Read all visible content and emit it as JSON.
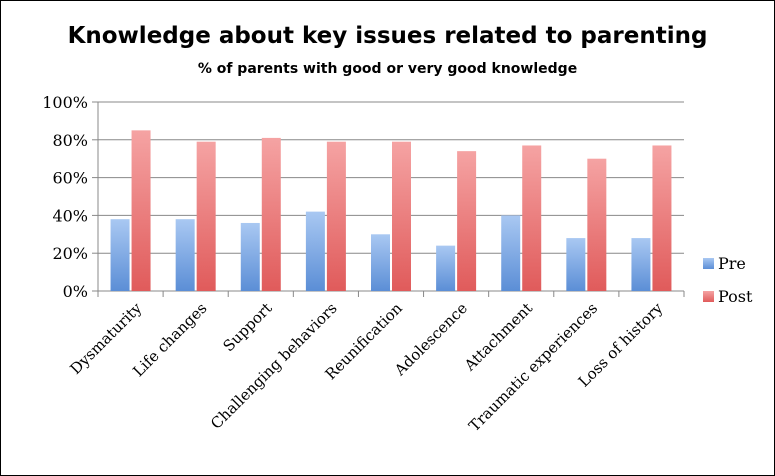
{
  "chart_data": {
    "type": "bar",
    "title": "Knowledge about key issues related to parenting",
    "subtitle": "% of parents with good or very good knowledge",
    "categories": [
      "Dysmaturity",
      "Life changes",
      "Support",
      "Challenging behaviors",
      "Reunification",
      "Adolescence",
      "Attachment",
      "Traumatic experiences",
      "Loss of history"
    ],
    "series": [
      {
        "name": "Pre",
        "values": [
          38,
          38,
          36,
          42,
          30,
          24,
          40,
          28,
          28
        ],
        "color": "#5b8ed6"
      },
      {
        "name": "Post",
        "values": [
          85,
          79,
          81,
          79,
          79,
          74,
          77,
          70,
          77
        ],
        "color": "#e05b5b"
      }
    ],
    "ylim": [
      0,
      100
    ],
    "yticks": [
      0,
      20,
      40,
      60,
      80,
      100
    ],
    "ytick_labels": [
      "0%",
      "20%",
      "40%",
      "60%",
      "80%",
      "100%"
    ],
    "xlabel": "",
    "ylabel": "",
    "grid": true,
    "legend": "right"
  }
}
